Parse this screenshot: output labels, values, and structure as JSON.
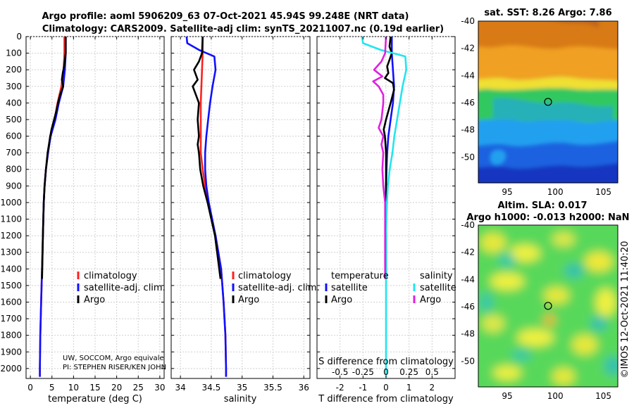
{
  "figure": {
    "title_line1": "Argo profile: aoml 5906209_63 07-Oct-2021 45.94S 99.248E (NRT data)",
    "title_line2": "Climatology: CARS2009. Satellite-adj clim: synTS_20211007.nc (0.19d earlier)",
    "credit_line1": "UW, SOCCOM, Argo equivale",
    "credit_line2": "PI: STEPHEN RISER/KEN JOHN",
    "watermark": "©IMOS 12-Oct-2021 11:40:20",
    "colors": {
      "climatology": "#ff2020",
      "satellite": "#1010ff",
      "argo": "#000000",
      "salinity_diff": "#22e5ee",
      "argo_salinity_diff": "#e020e0"
    }
  },
  "chart_data": [
    {
      "id": "temperature",
      "type": "line",
      "xlabel": "temperature (deg C)",
      "ylabel": "",
      "xlim": [
        -1,
        31
      ],
      "ylim": [
        2060,
        0
      ],
      "xticks": [
        "0",
        "5",
        "10",
        "15",
        "20",
        "25",
        "30"
      ],
      "xtick_values": [
        0,
        5,
        10,
        15,
        20,
        25,
        30
      ],
      "yticks": [
        "0",
        "100",
        "200",
        "300",
        "400",
        "500",
        "600",
        "700",
        "800",
        "900",
        "1000",
        "1100",
        "1200",
        "1300",
        "1400",
        "1500",
        "1600",
        "1700",
        "1800",
        "1900",
        "2000"
      ],
      "ytick_values": [
        0,
        100,
        200,
        300,
        400,
        500,
        600,
        700,
        800,
        900,
        1000,
        1100,
        1200,
        1300,
        1400,
        1500,
        1600,
        1700,
        1800,
        1900,
        2000
      ],
      "grid": true,
      "legend": [
        "climatology",
        "satellite-adj. clim.",
        "Argo"
      ],
      "legend_location": "lower-right",
      "series": [
        {
          "name": "climatology",
          "color": "#ff2020",
          "y": [
            0,
            100,
            200,
            250,
            300,
            400,
            500,
            600,
            700,
            800,
            900,
            1000,
            1200,
            1400,
            1600,
            1800,
            2000,
            2050
          ],
          "x": [
            7.9,
            7.9,
            7.7,
            7.4,
            7.2,
            6.3,
            5.6,
            4.6,
            4.1,
            3.6,
            3.3,
            3.1,
            2.9,
            2.7,
            2.5,
            2.3,
            2.2,
            2.2
          ]
        },
        {
          "name": "satellite-adj. clim.",
          "color": "#1010ff",
          "y": [
            0,
            100,
            200,
            250,
            300,
            400,
            500,
            600,
            700,
            800,
            900,
            1000,
            1200,
            1400,
            1600,
            1800,
            2000,
            2050
          ],
          "x": [
            8.2,
            8.2,
            8.0,
            7.8,
            7.6,
            6.6,
            5.8,
            4.7,
            4.1,
            3.6,
            3.3,
            3.1,
            2.9,
            2.7,
            2.5,
            2.3,
            2.2,
            2.2
          ]
        },
        {
          "name": "Argo",
          "color": "#000000",
          "y": [
            0,
            100,
            180,
            220,
            260,
            300,
            350,
            400,
            450,
            500,
            560,
            600,
            650,
            700,
            750,
            800,
            900,
            1000,
            1200,
            1460
          ],
          "x": [
            8.2,
            8.2,
            7.8,
            7.5,
            7.3,
            7.6,
            6.9,
            6.4,
            6.0,
            5.5,
            4.9,
            4.6,
            4.3,
            4.0,
            3.8,
            3.6,
            3.3,
            3.1,
            2.9,
            2.7
          ]
        }
      ]
    },
    {
      "id": "salinity",
      "type": "line",
      "xlabel": "salinity",
      "xlim": [
        33.85,
        36.1
      ],
      "ylim": [
        2060,
        0
      ],
      "xticks": [
        "34",
        "34.5",
        "35",
        "35.5",
        "36"
      ],
      "xtick_values": [
        34,
        34.5,
        35,
        35.5,
        36
      ],
      "grid": true,
      "legend": [
        "climatology",
        "satellite-adj. clim.",
        "Argo"
      ],
      "legend_location": "lower-right",
      "series": [
        {
          "name": "climatology",
          "color": "#ff2020",
          "y": [
            0,
            100,
            200,
            300,
            400,
            500,
            600,
            700,
            800,
            900,
            1000,
            1200,
            1400,
            1600,
            1800,
            2000,
            2050
          ],
          "x": [
            34.36,
            34.36,
            34.35,
            34.34,
            34.33,
            34.33,
            34.33,
            34.33,
            34.36,
            34.4,
            34.45,
            34.57,
            34.66,
            34.7,
            34.73,
            34.74,
            34.74
          ]
        },
        {
          "name": "satellite-adj. clim.",
          "color": "#1010ff",
          "y": [
            0,
            40,
            80,
            120,
            200,
            300,
            400,
            500,
            600,
            700,
            800,
            900,
            1000,
            1200,
            1400,
            1600,
            1800,
            2000,
            2050
          ],
          "x": [
            34.1,
            34.11,
            34.3,
            34.55,
            34.57,
            34.52,
            34.48,
            34.45,
            34.42,
            34.4,
            34.4,
            34.42,
            34.46,
            34.57,
            34.66,
            34.7,
            34.73,
            34.74,
            34.74
          ]
        },
        {
          "name": "Argo",
          "color": "#000000",
          "y": [
            0,
            100,
            150,
            200,
            260,
            300,
            350,
            400,
            500,
            600,
            650,
            700,
            800,
            900,
            1000,
            1200,
            1460
          ],
          "x": [
            34.36,
            34.35,
            34.3,
            34.22,
            34.28,
            34.2,
            34.25,
            34.3,
            34.28,
            34.3,
            34.28,
            34.3,
            34.32,
            34.37,
            34.44,
            34.56,
            34.65
          ]
        }
      ]
    },
    {
      "id": "differences",
      "type": "line",
      "xlabel": "T difference from climatology",
      "top_axis_label": "S difference from climatology",
      "xlim": [
        -3,
        3
      ],
      "ylim": [
        2060,
        0
      ],
      "xticks": [
        "-2",
        "-1",
        "0",
        "1",
        "2"
      ],
      "xtick_values": [
        -2,
        -1,
        0,
        1,
        2
      ],
      "s_ticks": [
        "-0.5",
        "-0.25",
        "0",
        "0.25",
        "0.5"
      ],
      "s_tick_values": [
        -0.5,
        -0.25,
        0,
        0.25,
        0.5
      ],
      "grid": true,
      "legend_temperature_title": "temperature",
      "legend_salinity_title": "salinity",
      "legend_temperature": [
        "satellite",
        "Argo"
      ],
      "legend_salinity": [
        "satellite",
        "Argo"
      ],
      "series": [
        {
          "name": "T satellite",
          "color": "#1010ff",
          "y": [
            0,
            100,
            200,
            300,
            400,
            500,
            600,
            700,
            800,
            900,
            1000,
            1100,
            1200,
            1300,
            1460
          ],
          "x": [
            0.25,
            0.25,
            0.3,
            0.35,
            0.3,
            0.2,
            0.1,
            0.05,
            0.02,
            0.0,
            0.0,
            0.0,
            0.0,
            0.0,
            0.0
          ]
        },
        {
          "name": "T Argo",
          "color": "#000000",
          "y": [
            0,
            60,
            100,
            180,
            220,
            250,
            280,
            320,
            400,
            500,
            560,
            600,
            700,
            800,
            900,
            1000,
            1200,
            1460
          ],
          "x": [
            0.2,
            0.15,
            0.25,
            0.05,
            0.1,
            -0.05,
            0.3,
            0.35,
            0.2,
            0.0,
            -0.1,
            -0.05,
            0.0,
            0.0,
            0.0,
            0.0,
            0.0,
            0.0
          ]
        },
        {
          "name": "S satellite",
          "color": "#22e5ee",
          "y": [
            0,
            40,
            80,
            120,
            200,
            300,
            400,
            500,
            600,
            700,
            800,
            900,
            1000,
            1200,
            1400,
            1600,
            1800,
            2000,
            2050
          ],
          "x": [
            -0.26,
            -0.25,
            -0.06,
            0.21,
            0.22,
            0.18,
            0.15,
            0.12,
            0.09,
            0.07,
            0.04,
            0.02,
            0.01,
            0.0,
            0.0,
            0.0,
            0.0,
            0.0,
            0.0
          ]
        },
        {
          "name": "S Argo",
          "color": "#e020e0",
          "y": [
            0,
            100,
            150,
            200,
            240,
            270,
            300,
            350,
            400,
            500,
            550,
            600,
            650,
            700,
            800,
            900,
            1000,
            1200,
            1460
          ],
          "x": [
            0.0,
            -0.01,
            -0.05,
            -0.13,
            -0.04,
            -0.14,
            -0.08,
            -0.03,
            -0.03,
            -0.05,
            -0.08,
            -0.03,
            -0.05,
            -0.03,
            -0.04,
            -0.03,
            -0.01,
            -0.01,
            -0.01
          ]
        }
      ]
    },
    {
      "id": "sst_map",
      "type": "heatmap",
      "title": "sat. SST: 8.26 Argo: 7.86",
      "xlim": [
        92,
        106.5
      ],
      "ylim": [
        -51.9,
        -40
      ],
      "xticks": [
        "95",
        "100",
        "105"
      ],
      "xtick_values": [
        95,
        100,
        105
      ],
      "yticks": [
        "-40",
        "-42",
        "-44",
        "-46",
        "-48",
        "-50"
      ],
      "ytick_values": [
        -40,
        -42,
        -44,
        -46,
        -48,
        -50
      ],
      "marker": {
        "lon": 99.25,
        "lat": -45.94
      }
    },
    {
      "id": "sla_map",
      "type": "heatmap",
      "title": "Altim. SLA: 0.017",
      "subtitle": "Argo h1000: -0.013 h2000: NaN",
      "xlim": [
        92,
        106.5
      ],
      "ylim": [
        -51.9,
        -40
      ],
      "xticks": [
        "95",
        "100",
        "105"
      ],
      "xtick_values": [
        95,
        100,
        105
      ],
      "yticks": [
        "-40",
        "-42",
        "-44",
        "-46",
        "-48",
        "-50"
      ],
      "ytick_values": [
        -40,
        -42,
        -44,
        -46,
        -48,
        -50
      ],
      "marker": {
        "lon": 99.25,
        "lat": -45.94
      }
    }
  ]
}
